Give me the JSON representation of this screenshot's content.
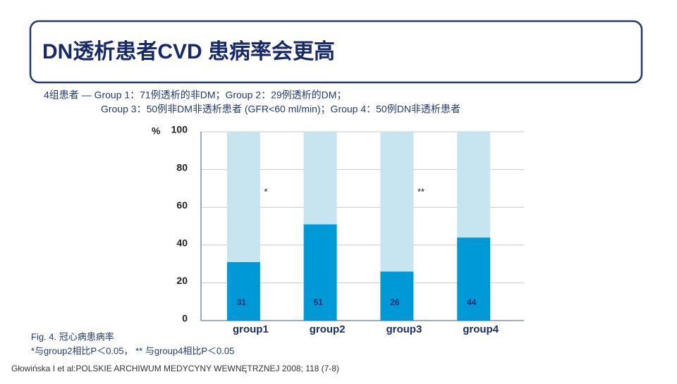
{
  "title": "DN透析患者CVD 患病率会更高",
  "subtitle": [
    "4组患者 — Group 1：71例透析的非DM；Group 2：29例透析的DM；",
    "Group 3：50例非DM非透析患者 (GFR<60 ml/min)；Group 4：50例DN非透析患者"
  ],
  "caption": [
    "Fig. 4. 冠心病患病率",
    "*与group2相比P＜0.05，  ** 与group4相比P＜0.05"
  ],
  "citation": "Głowińska I et al:POLSKIE ARCHIWUM MEDYCYNY WEWNĘTRZNEJ 2008; 118 (7-8)",
  "chart_data": {
    "type": "stacked_bar",
    "y_label": "%",
    "categories": [
      "group1",
      "group2",
      "group3",
      "group4"
    ],
    "series": [
      {
        "color": "#0099d8",
        "values": [
          31,
          51,
          26,
          44
        ]
      },
      {
        "color": "#c7e4f1",
        "values": [
          69,
          49,
          74,
          56
        ]
      }
    ],
    "ylim": [
      0,
      100
    ],
    "yticks": [
      0,
      20,
      40,
      60,
      80,
      100
    ],
    "grid": true,
    "annotations": [
      {
        "text": "*",
        "category": 0
      },
      {
        "text": "**",
        "category": 2
      }
    ]
  }
}
